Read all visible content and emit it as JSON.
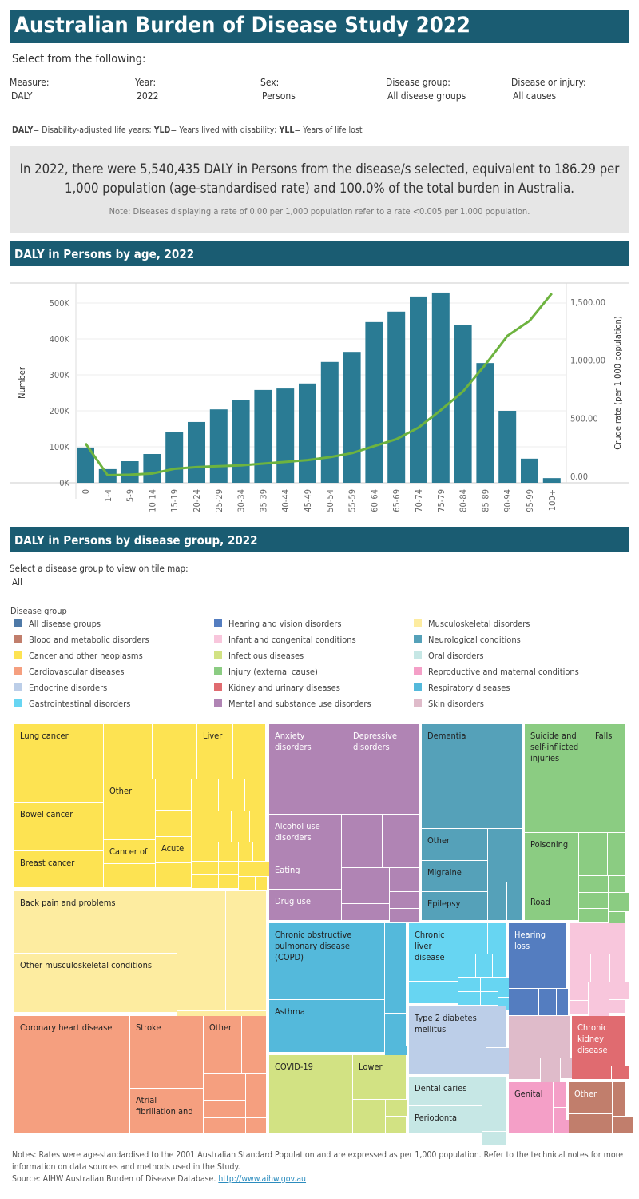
{
  "title": "Australian Burden of Disease Study 2022",
  "filters": {
    "heading": "Select from the following:",
    "items": [
      {
        "label": "Measure:",
        "value": "DALY"
      },
      {
        "label": "Year:",
        "value": "2022"
      },
      {
        "label": "Sex:",
        "value": "Persons"
      },
      {
        "label": "Disease group:",
        "value": "All disease groups"
      },
      {
        "label": "Disease or injury:",
        "value": "All causes"
      }
    ]
  },
  "definitions": {
    "daly_abbr": "DALY",
    "daly_def": "= Disability-adjusted life years; ",
    "yld_abbr": "YLD",
    "yld_def": "= Years lived with disability; ",
    "yll_abbr": "YLL",
    "yll_def": "= Years of life lost"
  },
  "summary": {
    "text": "In 2022, there were 5,540,435 DALY in Persons from the disease/s selected, equivalent to 186.29 per 1,000 population (age-standardised rate) and 100.0% of the total burden in Australia.",
    "note": "Note: Diseases displaying a rate of 0.00 per 1,000 population refer to a rate <0.005 per 1,000 population."
  },
  "age_section": {
    "title": "DALY in Persons by age, 2022"
  },
  "chart_data": {
    "type": "bar+line",
    "categories": [
      "0",
      "1-4",
      "5-9",
      "10-14",
      "15-19",
      "20-24",
      "25-29",
      "30-34",
      "35-39",
      "40-44",
      "45-49",
      "50-54",
      "55-59",
      "60-64",
      "65-69",
      "70-74",
      "75-79",
      "80-84",
      "85-89",
      "90-94",
      "95-99",
      "100+"
    ],
    "series": [
      {
        "axis": "left",
        "type": "bar",
        "color": "#2a7b94",
        "values": [
          98000,
          38000,
          60000,
          80000,
          140000,
          169000,
          204000,
          231000,
          258000,
          262000,
          276000,
          336000,
          364000,
          447000,
          476000,
          518000,
          529000,
          440000,
          333000,
          200000,
          67000,
          13000
        ]
      },
      {
        "axis": "right",
        "type": "line",
        "color": "#6db33f",
        "values": [
          284,
          10,
          15,
          25,
          65,
          80,
          88,
          95,
          110,
          125,
          140,
          165,
          200,
          260,
          320,
          420,
          570,
          730,
          960,
          1210,
          1340,
          1575
        ]
      }
    ],
    "ylabel": "Number",
    "y2label": "Crude rate (per 1,000 population)",
    "ylim": [
      0,
      550000
    ],
    "y2lim": [
      0,
      1650
    ],
    "yticks": [
      "0K",
      "100K",
      "200K",
      "300K",
      "400K",
      "500K"
    ],
    "yticks_values": [
      0,
      100000,
      200000,
      300000,
      400000,
      500000
    ],
    "y2ticks": [
      "0.00",
      "500.00",
      "1,000.00",
      "1,500.00"
    ],
    "y2ticks_values": [
      0,
      500,
      1000,
      1500
    ],
    "grid": true
  },
  "group_section": {
    "title": "DALY in Persons by disease group, 2022",
    "select_label": "Select a disease group to view on tile map:",
    "select_value": "All"
  },
  "legend": {
    "title": "Disease group",
    "items": [
      {
        "label": "All disease groups",
        "color": "#4e79a7"
      },
      {
        "label": "Blood and metabolic disorders",
        "color": "#c17e6c"
      },
      {
        "label": "Cancer and other neoplasms",
        "color": "#fde352"
      },
      {
        "label": "Cardiovascular diseases",
        "color": "#f59f7f"
      },
      {
        "label": "Endocrine disorders",
        "color": "#bccee8"
      },
      {
        "label": "Gastrointestinal disorders",
        "color": "#67d5f2"
      },
      {
        "label": "Hearing and vision disorders",
        "color": "#547dc0"
      },
      {
        "label": "Infant and congenital conditions",
        "color": "#f8c6dc"
      },
      {
        "label": "Infectious diseases",
        "color": "#d2e283"
      },
      {
        "label": "Injury (external cause)",
        "color": "#8bcc82"
      },
      {
        "label": "Kidney and urinary diseases",
        "color": "#e06b70"
      },
      {
        "label": "Mental and substance use disorders",
        "color": "#b084b4"
      },
      {
        "label": "Musculoskeletal disorders",
        "color": "#fdeca0"
      },
      {
        "label": "Neurological conditions",
        "color": "#55a1b9"
      },
      {
        "label": "Oral disorders",
        "color": "#c6e7e5"
      },
      {
        "label": "Reproductive and maternal conditions",
        "color": "#f49fc7"
      },
      {
        "label": "Respiratory diseases",
        "color": "#54b9db"
      },
      {
        "label": "Skin disorders",
        "color": "#dfbbca"
      }
    ]
  },
  "treemap": {
    "labels": {
      "lung": "Lung cancer",
      "liver": "Liver",
      "other_cancer": "Other",
      "bowel": "Bowel cancer",
      "cancer_of": "Cancer of",
      "acute": "Acute",
      "breast": "Breast cancer",
      "anxiety": "Anxiety disorders",
      "depressive": "Depressive disorders",
      "alcohol": "Alcohol use disorders",
      "eating": "Eating",
      "drug": "Drug use",
      "dementia": "Dementia",
      "other_neuro": "Other",
      "migraine": "Migraine",
      "epilepsy": "Epilepsy",
      "suicide": "Suicide and self-inflicted injuries",
      "falls": "Falls",
      "poisoning": "Poisoning",
      "road": "Road",
      "back": "Back pain and problems",
      "other_msk": "Other musculoskeletal conditions",
      "copd": "Chronic obstructive pulmonary disease (COPD)",
      "asthma": "Asthma",
      "liverdis": "Chronic liver disease",
      "hearing": "Hearing loss",
      "coronary": "Coronary heart disease",
      "stroke": "Stroke",
      "other_cvd": "Other",
      "atrial": "Atrial fibrillation and",
      "covid": "COVID-19",
      "lower": "Lower",
      "t2d": "Type 2 diabetes mellitus",
      "ckd": "Chronic kidney disease",
      "caries": "Dental caries",
      "periodontal": "Periodontal",
      "genital": "Genital",
      "other_blood": "Other"
    }
  },
  "footer": {
    "notes": "Notes: Rates were age-standardised to the 2001 Australian Standard Population and are expressed as per 1,000 population. Refer to the technical notes for more information on data sources and methods used in the Study.",
    "source": "Source: AIHW Australian Burden of Disease Database. ",
    "link": "http://www.aihw.gov.au"
  }
}
